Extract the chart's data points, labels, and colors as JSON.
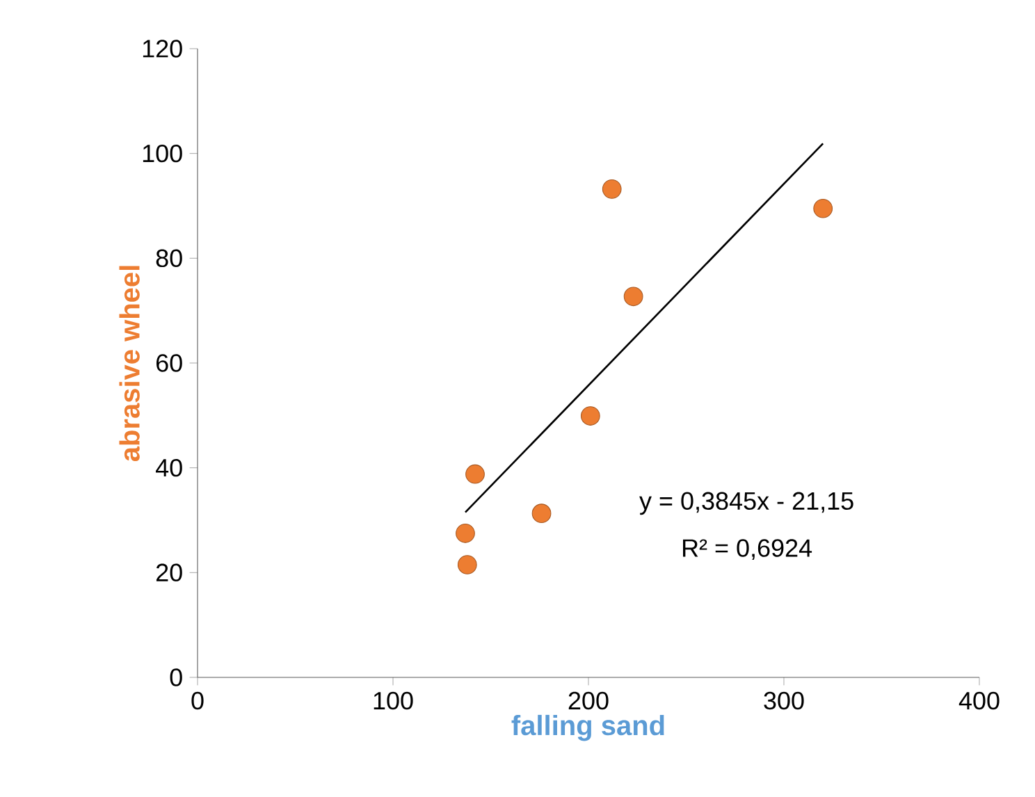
{
  "chart_data": {
    "type": "scatter",
    "xlabel": "falling sand",
    "ylabel": "abrasive wheel",
    "xlim": [
      0,
      400
    ],
    "ylim": [
      0,
      120
    ],
    "xticks": [
      0,
      100,
      200,
      300,
      400
    ],
    "yticks": [
      0,
      20,
      40,
      60,
      80,
      100,
      120
    ],
    "grid": false,
    "series": [
      {
        "color": "#ed7d31",
        "marker": "circle",
        "x": [
          137,
          138,
          142,
          176,
          201,
          212,
          223,
          320
        ],
        "values": [
          27.5,
          21.5,
          38.8,
          31.3,
          49.9,
          93.2,
          72.7,
          89.5
        ]
      },
      {
        "type": "line",
        "color": "#000000",
        "marker": "none",
        "line_style": "solid",
        "x": [
          137,
          320
        ],
        "values": [
          31.5,
          101.9
        ]
      }
    ],
    "annotations": [
      "y = 0,3845x - 21,15",
      "R² = 0,6924"
    ]
  }
}
